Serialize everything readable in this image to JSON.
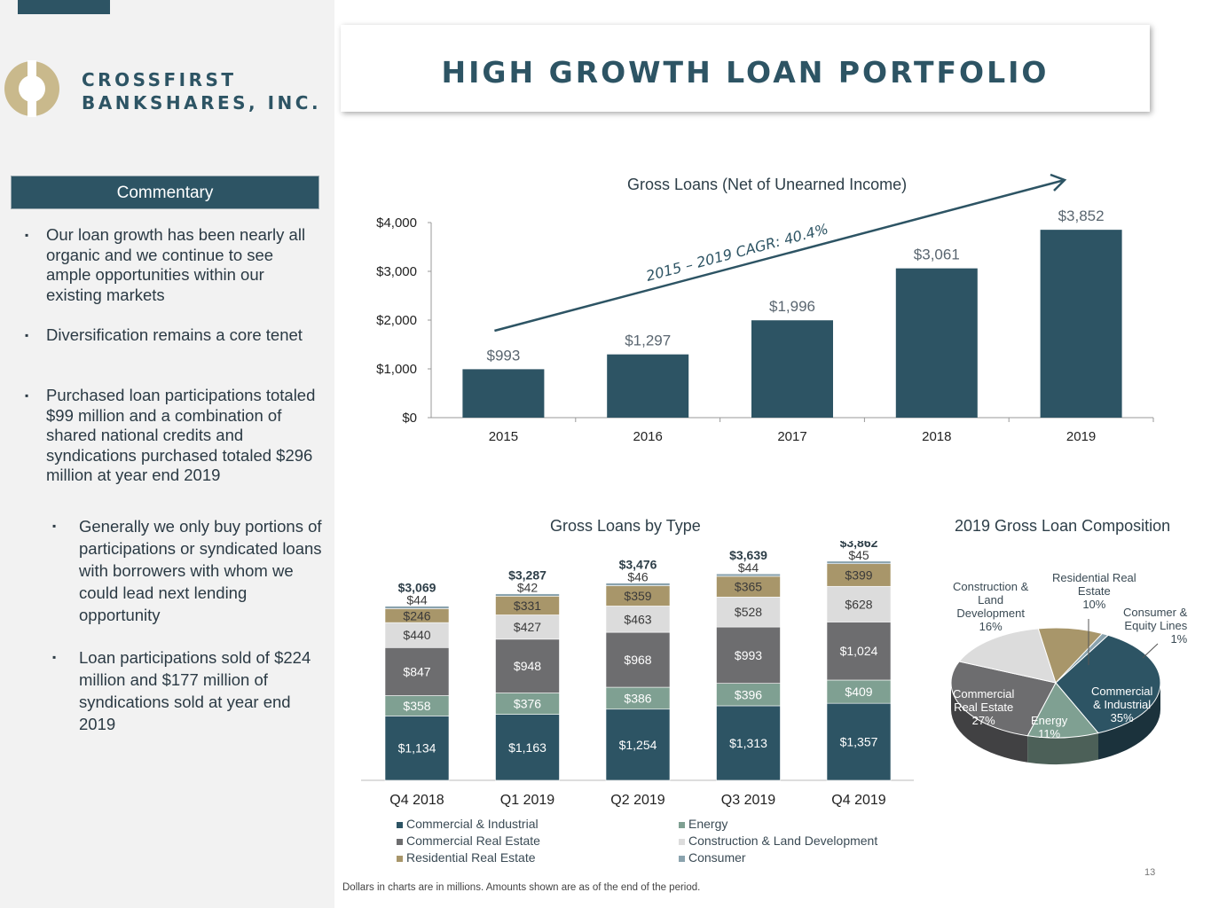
{
  "brand": {
    "line1": "CROSSFIRST",
    "line2": "BANKSHARES, INC."
  },
  "title": "HIGH GROWTH LOAN PORTFOLIO",
  "commentary": {
    "header": "Commentary",
    "bullets": [
      "Our loan growth has been nearly all organic and we continue to see ample opportunities within our existing markets",
      "Diversification remains a core tenet",
      "Purchased loan participations totaled $99 million and a combination of shared national credits and syndications purchased totaled $296 million at year end 2019"
    ],
    "sub_bullets": [
      "Generally we only buy portions of participations or syndicated loans with borrowers with whom we could lead next lending opportunity",
      "Loan participations sold of $224 million and $177 million of syndications sold at year end 2019"
    ]
  },
  "chart_data": [
    {
      "type": "bar",
      "title": "Gross Loans (Net of Unearned Income)",
      "categories": [
        "2015",
        "2016",
        "2017",
        "2018",
        "2019"
      ],
      "values": [
        993,
        1297,
        1996,
        3061,
        3852
      ],
      "value_labels": [
        "$993",
        "$1,297",
        "$1,996",
        "$3,061",
        "$3,852"
      ],
      "ylim": [
        0,
        4000
      ],
      "yticks": [
        "$0",
        "$1,000",
        "$2,000",
        "$3,000",
        "$4,000"
      ],
      "annotation": "2015 – 2019 CAGR: 40.4%",
      "color": "#2d5464"
    },
    {
      "type": "bar",
      "stacked": true,
      "title": "Gross Loans by Type",
      "categories": [
        "Q4 2018",
        "Q1 2019",
        "Q2 2019",
        "Q3 2019",
        "Q4 2019"
      ],
      "totals": [
        "$3,069",
        "$3,287",
        "$3,476",
        "$3,639",
        "$3,862"
      ],
      "series": [
        {
          "name": "Commercial & Industrial",
          "color": "#2d5464",
          "values": [
            1134,
            1163,
            1254,
            1313,
            1357
          ],
          "labels": [
            "$1,134",
            "$1,163",
            "$1,254",
            "$1,313",
            "$1,357"
          ]
        },
        {
          "name": "Energy",
          "color": "#7fa092",
          "values": [
            358,
            376,
            386,
            396,
            409
          ],
          "labels": [
            "$358",
            "$376",
            "$386",
            "$396",
            "$409"
          ]
        },
        {
          "name": "Commercial Real Estate",
          "color": "#6d6d6f",
          "values": [
            847,
            948,
            968,
            993,
            1024
          ],
          "labels": [
            "$847",
            "$948",
            "$968",
            "$993",
            "$1,024"
          ]
        },
        {
          "name": "Construction & Land Development",
          "color": "#dcdcdc",
          "values": [
            440,
            427,
            463,
            528,
            628
          ],
          "labels": [
            "$440",
            "$427",
            "$463",
            "$528",
            "$628"
          ]
        },
        {
          "name": "Residential Real Estate",
          "color": "#a8966a",
          "values": [
            246,
            331,
            359,
            365,
            399
          ],
          "labels": [
            "$246",
            "$331",
            "$359",
            "$365",
            "$399"
          ]
        },
        {
          "name": "Consumer",
          "color": "#8aa3ae",
          "values": [
            44,
            42,
            46,
            44,
            45
          ],
          "labels": [
            "$44",
            "$42",
            "$46",
            "$44",
            "$45"
          ]
        }
      ],
      "legend_order": [
        "Commercial & Industrial",
        "Energy",
        "Commercial Real Estate",
        "Construction & Land Development",
        "Residential Real Estate",
        "Consumer"
      ]
    },
    {
      "type": "pie",
      "title": "2019 Gross Loan Composition",
      "slices": [
        {
          "label": "Commercial & Industrial",
          "pct": 35,
          "color": "#2d5464"
        },
        {
          "label": "Energy",
          "pct": 11,
          "color": "#7fa092"
        },
        {
          "label": "Commercial Real Estate",
          "pct": 27,
          "color": "#6d6d6f"
        },
        {
          "label": "Construction & Land Development",
          "pct": 16,
          "color": "#dcdcdc"
        },
        {
          "label": "Residential Real Estate",
          "pct": 10,
          "color": "#a8966a"
        },
        {
          "label": "Consumer & Equity Lines",
          "pct": 1,
          "color": "#8aa3ae"
        }
      ],
      "labels": {
        "ci": [
          "Commercial",
          "& Industrial",
          "35%"
        ],
        "energy": [
          "Energy",
          "11%"
        ],
        "cre": [
          "Commercial",
          "Real Estate",
          "27%"
        ],
        "cld": [
          "Construction &",
          "Land",
          "Development",
          "16%"
        ],
        "rre": [
          "Residential Real",
          "Estate",
          "10%"
        ],
        "consumer": [
          "Consumer &",
          "Equity Lines",
          "1%"
        ]
      }
    }
  ],
  "footnote": "Dollars in charts are in millions. Amounts shown are as of the end of the period.",
  "page_number": "13"
}
